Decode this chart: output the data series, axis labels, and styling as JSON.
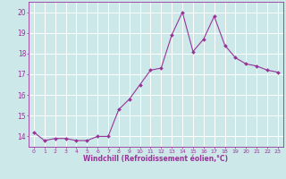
{
  "x": [
    0,
    1,
    2,
    3,
    4,
    5,
    6,
    7,
    8,
    9,
    10,
    11,
    12,
    13,
    14,
    15,
    16,
    17,
    18,
    19,
    20,
    21,
    22,
    23
  ],
  "y": [
    14.2,
    13.8,
    13.9,
    13.9,
    13.8,
    13.8,
    14.0,
    14.0,
    15.3,
    15.8,
    16.5,
    17.2,
    17.3,
    18.9,
    20.0,
    18.1,
    18.7,
    19.8,
    18.4,
    17.8,
    17.5,
    17.4,
    17.2,
    17.1
  ],
  "line_color": "#993399",
  "marker": "D",
  "marker_size": 2.0,
  "bg_color": "#cce8e8",
  "grid_color": "#ffffff",
  "xlabel": "Windchill (Refroidissement éolien,°C)",
  "xlabel_color": "#993399",
  "tick_color": "#993399",
  "ylim": [
    13.5,
    20.5
  ],
  "yticks": [
    14,
    15,
    16,
    17,
    18,
    19,
    20
  ],
  "xlim": [
    -0.5,
    23.5
  ],
  "xticks": [
    0,
    1,
    2,
    3,
    4,
    5,
    6,
    7,
    8,
    9,
    10,
    11,
    12,
    13,
    14,
    15,
    16,
    17,
    18,
    19,
    20,
    21,
    22,
    23
  ]
}
